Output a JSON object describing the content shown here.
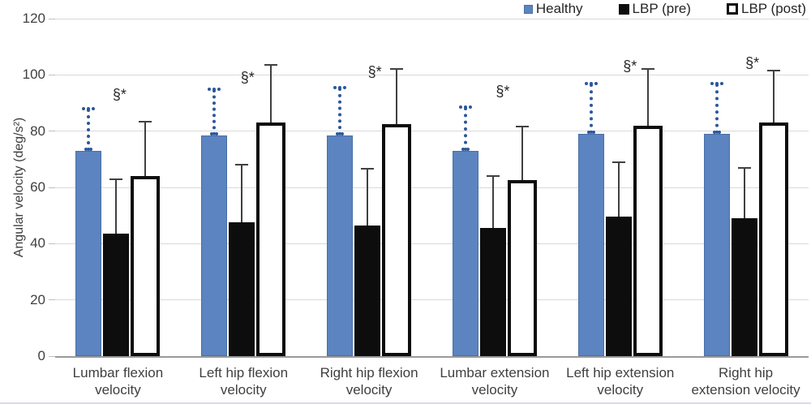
{
  "chart_data": {
    "type": "bar",
    "title": "",
    "ylabel": "Angular velocity (deg/s²)",
    "xlabel": "",
    "ylim": [
      0,
      120
    ],
    "yticks": [
      0,
      20,
      40,
      60,
      80,
      100,
      120
    ],
    "grid": true,
    "legend_position": "top-right",
    "categories": [
      "Lumbar flexion\nvelocity",
      "Left hip flexion\nvelocity",
      "Right hip flexion\nvelocity",
      "Lumbar extension\nvelocity",
      "Left hip extension\nvelocity",
      "Right hip\nextension velocity"
    ],
    "series": [
      {
        "name": "Healthy",
        "color": "#5b84c0",
        "error_bar_style": "dotted",
        "error_bar_color": "#2b579a",
        "values": [
          73,
          78.5,
          78.5,
          73,
          79,
          79
        ],
        "error_upper": [
          15,
          16.5,
          17,
          15.5,
          18,
          18
        ]
      },
      {
        "name": "LBP (pre)",
        "color": "#0d0d0d",
        "error_bar_style": "solid",
        "error_bar_color": "#404040",
        "values": [
          43.5,
          47.5,
          46.5,
          45.5,
          49.5,
          49
        ],
        "error_upper": [
          19.5,
          20.5,
          20,
          18.5,
          19.5,
          18
        ]
      },
      {
        "name": "LBP (post)",
        "color": "#ffffff",
        "border_color": "#0d0d0d",
        "error_bar_style": "solid",
        "error_bar_color": "#404040",
        "values": [
          64,
          83,
          82.5,
          62.5,
          82,
          83
        ],
        "error_upper": [
          19.5,
          20.5,
          19.5,
          19,
          20,
          18.5
        ]
      }
    ],
    "annotations": [
      {
        "text": "§*",
        "y": 93,
        "x_offset": 2
      },
      {
        "text": "§*",
        "y": 99,
        "x_offset": 5
      },
      {
        "text": "§*",
        "y": 101,
        "x_offset": 7
      },
      {
        "text": "§*",
        "y": 94,
        "x_offset": 10
      },
      {
        "text": "§*",
        "y": 103,
        "x_offset": 12
      },
      {
        "text": "§*",
        "y": 104,
        "x_offset": 8
      }
    ]
  }
}
